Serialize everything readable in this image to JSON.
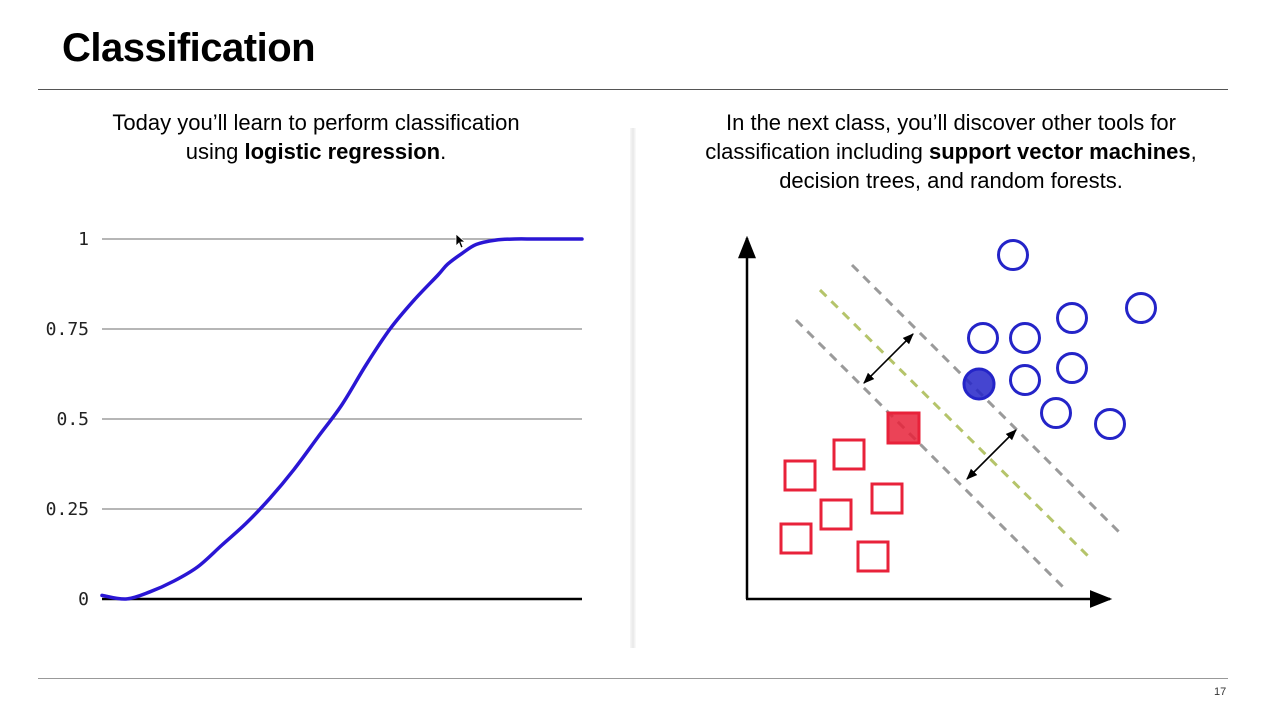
{
  "slide": {
    "title": "Classification",
    "page_number": "17",
    "left_text": {
      "line1": "Today you’ll learn to perform classification",
      "line2_pre": "using ",
      "line2_bold": "logistic regression",
      "line2_post": "."
    },
    "right_text": {
      "line1": "In the next class, you’ll discover other tools for",
      "line2_pre": "classification including ",
      "line2_bold": "support vector machines",
      "line2_post": ",",
      "line3": "decision trees, and random forests."
    }
  },
  "chart_data": {
    "type": "line",
    "series": [
      {
        "x": [
          0,
          0.05,
          0.1,
          0.15,
          0.2,
          0.25,
          0.3,
          0.35,
          0.4,
          0.45,
          0.5,
          0.55,
          0.6,
          0.65,
          0.7,
          0.72,
          0.75,
          0.78,
          0.82,
          0.86,
          0.9,
          0.95,
          1.0
        ],
        "y": [
          0.01,
          0.0,
          0.02,
          0.05,
          0.09,
          0.15,
          0.21,
          0.28,
          0.36,
          0.45,
          0.54,
          0.65,
          0.75,
          0.83,
          0.9,
          0.93,
          0.96,
          0.985,
          0.997,
          1.0,
          1.0,
          1.0,
          1.0
        ]
      }
    ],
    "yticks": [
      "0",
      "0.25",
      "0.5",
      "0.75",
      "1"
    ],
    "ylim": [
      0,
      1
    ],
    "xlim": [
      0,
      1
    ],
    "grid": true,
    "line_color": "#2a16d4"
  },
  "svm_diagram": {
    "circle_color": "#2424c8",
    "square_color": "#e8223a",
    "margin_line_color": "#9a9a9a",
    "hyperplane_color": "#b5c46a"
  }
}
